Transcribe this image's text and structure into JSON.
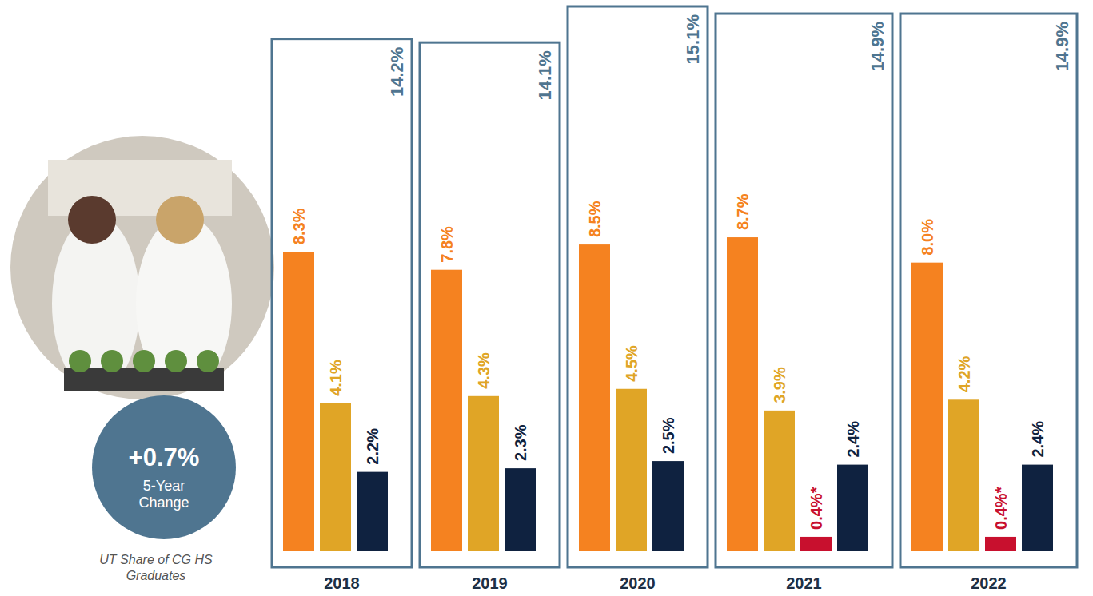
{
  "chart_data": {
    "type": "bar",
    "categories": [
      "2018",
      "2019",
      "2020",
      "2021",
      "2022"
    ],
    "series": [
      {
        "color": "#f58220",
        "values": [
          8.3,
          7.8,
          8.5,
          8.7,
          8.0
        ],
        "value_labels": [
          "8.3%",
          "7.8%",
          "8.5%",
          "8.7%",
          "8.0%"
        ]
      },
      {
        "color": "#e0a526",
        "values": [
          4.1,
          4.3,
          4.5,
          3.9,
          4.2
        ],
        "value_labels": [
          "4.1%",
          "4.3%",
          "4.5%",
          "3.9%",
          "4.2%"
        ]
      },
      {
        "color": "#c8102e",
        "values": [
          null,
          null,
          null,
          0.4,
          0.4
        ],
        "value_labels": [
          null,
          null,
          null,
          "0.4%*",
          "0.4%*"
        ]
      },
      {
        "color": "#0f2240",
        "values": [
          2.2,
          2.3,
          2.5,
          2.4,
          2.4
        ],
        "value_labels": [
          "2.2%",
          "2.3%",
          "2.5%",
          "2.4%",
          "2.4%"
        ]
      },
      {
        "type": "outline",
        "color": "#4f7590",
        "values": [
          14.2,
          14.1,
          15.1,
          14.9,
          14.9
        ],
        "value_labels": [
          "14.2%",
          "14.1%",
          "15.1%",
          "14.9%",
          "14.9%"
        ]
      }
    ],
    "ylim": [
      0,
      15.1
    ],
    "data_labels": true,
    "tick_labels": false,
    "annotations": [
      {
        "text": "+0.7%"
      },
      {
        "text": "5-Year Change"
      },
      {
        "text": "UT Share of CG HS Graduates"
      }
    ]
  }
}
